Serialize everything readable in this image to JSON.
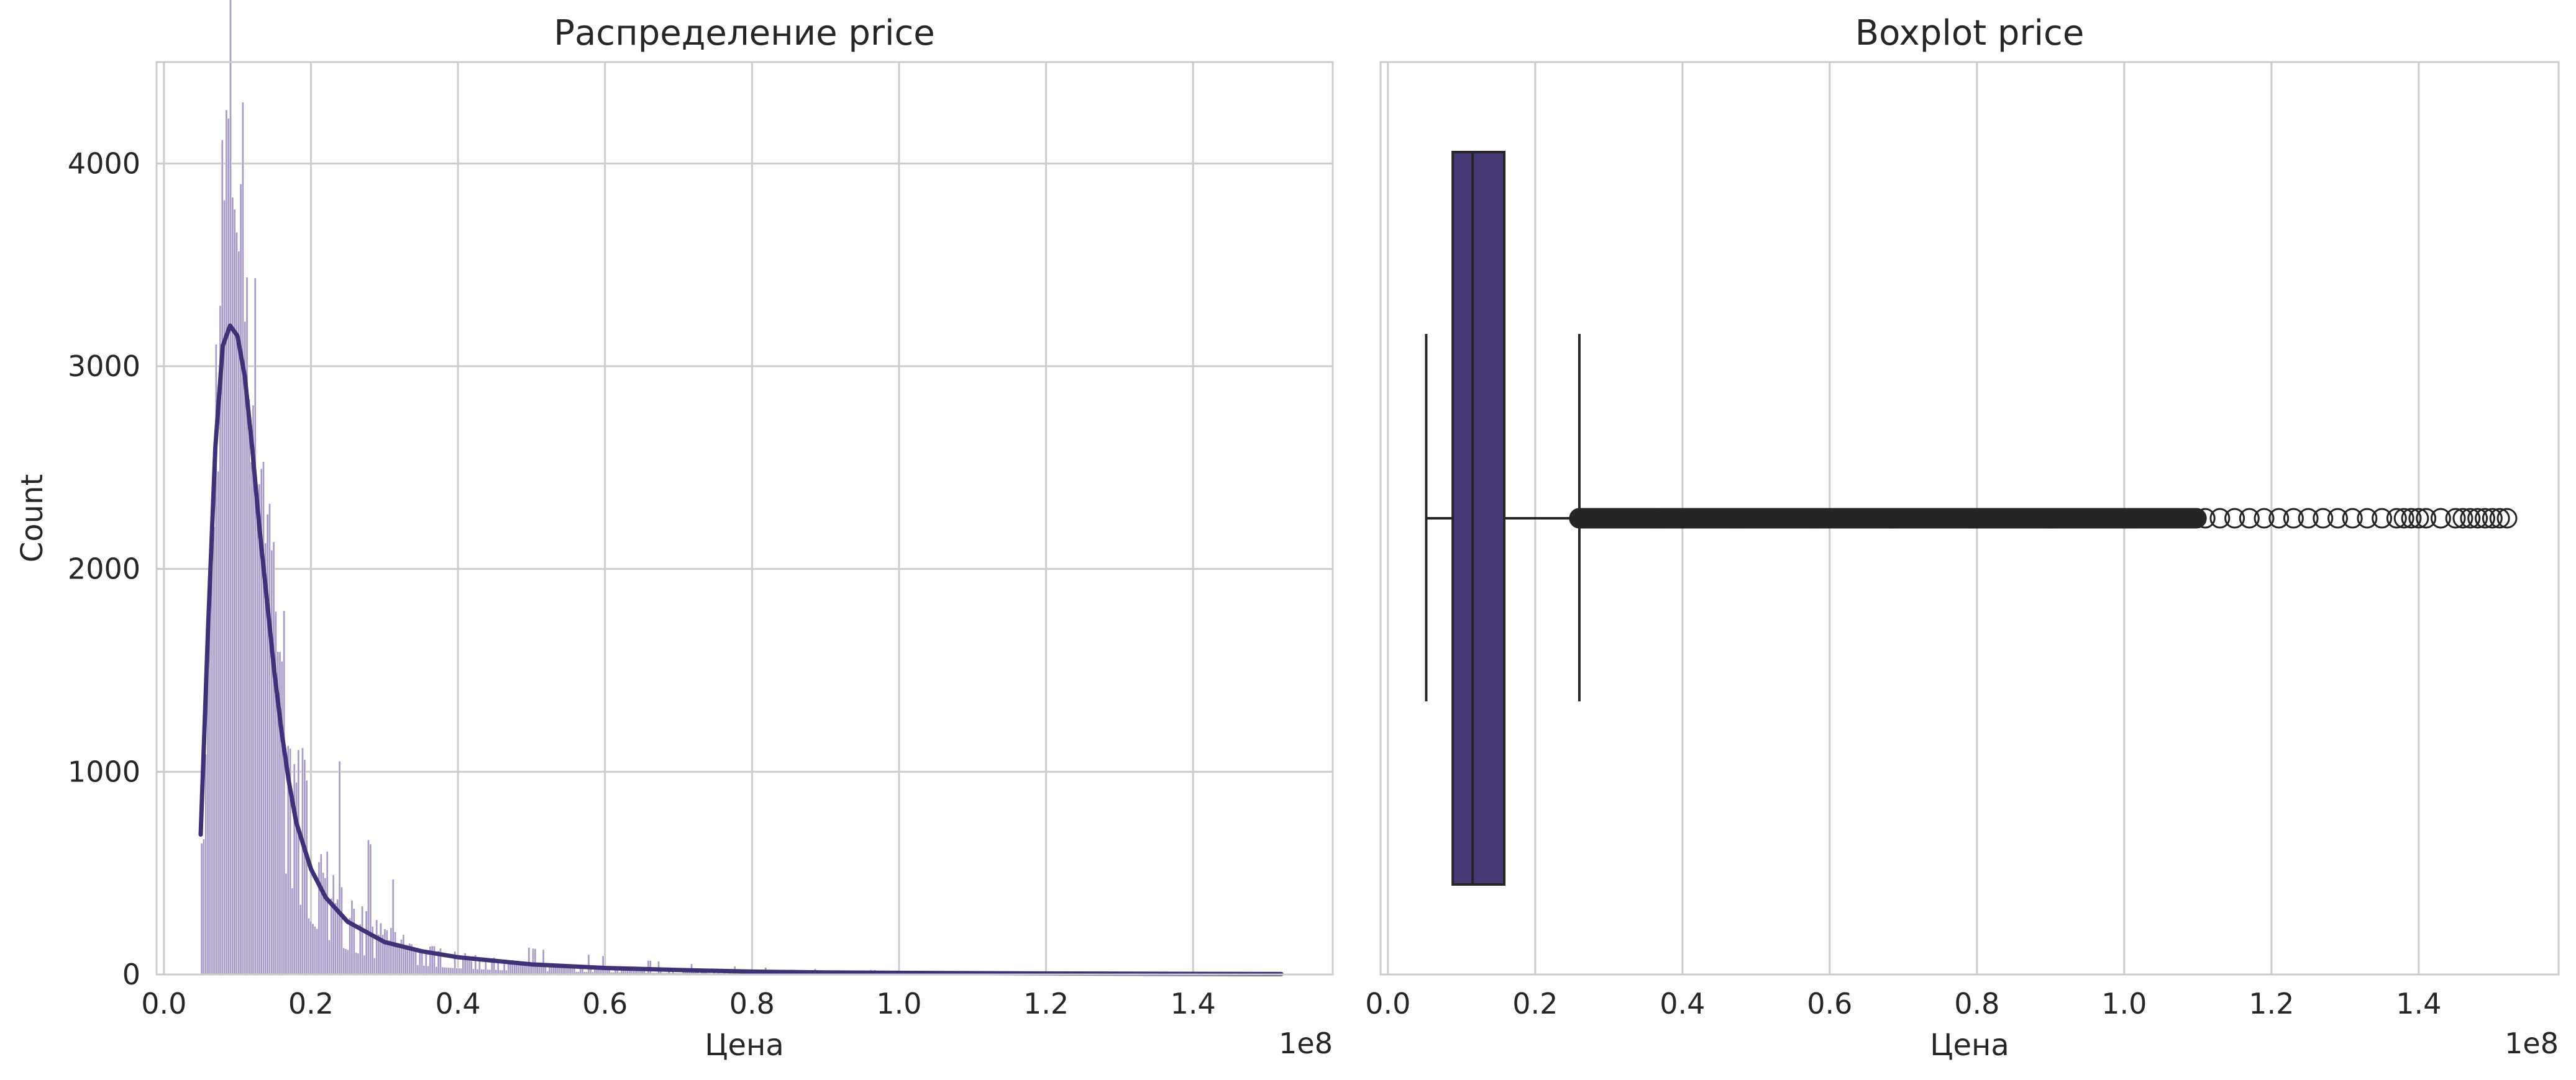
{
  "colors": {
    "hist_fill": "#a89bc7",
    "hist_edge": "#ffffff",
    "kde_line": "#3f3178",
    "box_fill": "#463975",
    "box_edge": "#262626",
    "grid": "#cccccc"
  },
  "chart_data": [
    {
      "type": "histogram",
      "title": "Распределение price",
      "xlabel": "Цена",
      "ylabel": "Count",
      "x_offset_label": "1e8",
      "xlim": [
        -0.01,
        1.59
      ],
      "ylim": [
        0,
        4500
      ],
      "xticks": [
        0.0,
        0.2,
        0.4,
        0.6,
        0.8,
        1.0,
        1.2,
        1.4
      ],
      "xtick_labels": [
        "0.0",
        "0.2",
        "0.4",
        "0.6",
        "0.8",
        "1.0",
        "1.2",
        "1.4"
      ],
      "yticks": [
        0,
        1000,
        2000,
        3000,
        4000
      ],
      "ytick_labels": [
        "0",
        "1000",
        "2000",
        "3000",
        "4000"
      ],
      "grid": true,
      "histogram_profile": [
        [
          0.05,
          450
        ],
        [
          0.06,
          1500
        ],
        [
          0.07,
          2700
        ],
        [
          0.08,
          3600
        ],
        [
          0.09,
          4100
        ],
        [
          0.1,
          3900
        ],
        [
          0.11,
          3500
        ],
        [
          0.12,
          3000
        ],
        [
          0.13,
          2600
        ],
        [
          0.14,
          2300
        ],
        [
          0.15,
          1900
        ],
        [
          0.16,
          1600
        ],
        [
          0.18,
          1100
        ],
        [
          0.2,
          750
        ],
        [
          0.22,
          520
        ],
        [
          0.25,
          350
        ],
        [
          0.3,
          200
        ],
        [
          0.35,
          130
        ],
        [
          0.4,
          90
        ],
        [
          0.5,
          50
        ],
        [
          0.6,
          35
        ],
        [
          0.7,
          22
        ],
        [
          0.8,
          14
        ],
        [
          1.0,
          8
        ],
        [
          1.2,
          5
        ],
        [
          1.52,
          2
        ]
      ],
      "kde": {
        "x": [
          0.05,
          0.06,
          0.07,
          0.08,
          0.09,
          0.1,
          0.11,
          0.12,
          0.13,
          0.14,
          0.15,
          0.16,
          0.17,
          0.18,
          0.2,
          0.22,
          0.25,
          0.3,
          0.35,
          0.4,
          0.5,
          0.6,
          0.7,
          0.8,
          0.9,
          1.0,
          1.2,
          1.4,
          1.52
        ],
        "y": [
          690,
          1700,
          2600,
          3100,
          3200,
          3150,
          2950,
          2600,
          2200,
          1850,
          1500,
          1200,
          950,
          750,
          520,
          380,
          260,
          160,
          115,
          85,
          50,
          32,
          22,
          14,
          10,
          8,
          5,
          3,
          2
        ]
      }
    },
    {
      "type": "boxplot",
      "title": "Boxplot price",
      "xlabel": "Цена",
      "x_offset_label": "1e8",
      "xlim": [
        -0.01,
        1.59
      ],
      "xticks": [
        0.0,
        0.2,
        0.4,
        0.6,
        0.8,
        1.0,
        1.2,
        1.4
      ],
      "xtick_labels": [
        "0.0",
        "0.2",
        "0.4",
        "0.6",
        "0.8",
        "1.0",
        "1.2",
        "1.4"
      ],
      "grid": true,
      "box": {
        "whisker_low": 0.052,
        "q1": 0.088,
        "median": 0.115,
        "q3": 0.158,
        "whisker_high": 0.26
      },
      "outlier_range": [
        0.26,
        1.52
      ],
      "sparse_outliers": [
        1.11,
        1.13,
        1.15,
        1.17,
        1.19,
        1.21,
        1.23,
        1.25,
        1.27,
        1.29,
        1.31,
        1.33,
        1.35,
        1.37,
        1.38,
        1.39,
        1.4,
        1.41,
        1.43,
        1.45,
        1.46,
        1.47,
        1.48,
        1.49,
        1.5,
        1.51,
        1.52
      ]
    }
  ]
}
